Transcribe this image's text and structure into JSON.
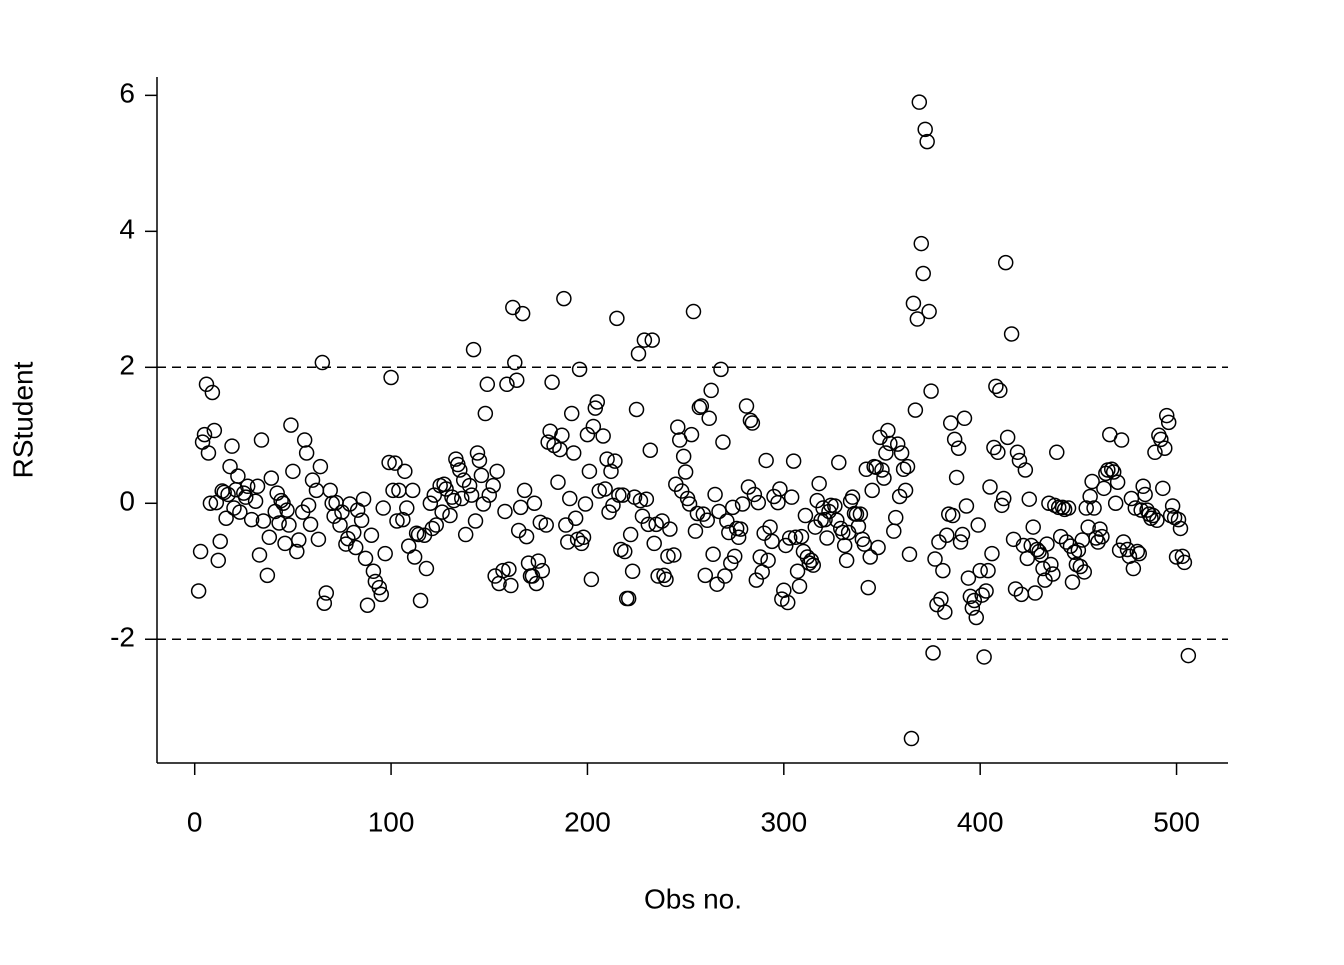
{
  "chart_data": {
    "type": "scatter",
    "x_label": "Obs no.",
    "y_label": "RStudent",
    "xlim": [
      -19.2,
      526.2
    ],
    "ylim": [
      -3.82,
      6.27
    ],
    "xticks": [
      0,
      100,
      200,
      300,
      400,
      500
    ],
    "yticks": [
      -2,
      0,
      2,
      4,
      6
    ],
    "hlines": [
      2,
      -2
    ],
    "color": "#000000",
    "x": [
      2,
      3,
      4,
      5,
      6,
      7,
      8,
      9,
      10,
      11,
      12,
      13,
      14,
      15,
      16,
      17,
      18,
      19,
      20,
      21,
      22,
      23,
      25,
      26,
      27,
      29,
      31,
      32,
      33,
      34,
      35,
      37,
      38,
      39,
      41,
      42,
      43,
      44,
      45,
      46,
      47,
      48,
      49,
      50,
      52,
      53,
      55,
      56,
      57,
      58,
      59,
      60,
      62,
      63,
      64,
      65,
      66,
      67,
      69,
      70,
      71,
      72,
      74,
      75,
      77,
      78,
      79,
      81,
      82,
      83,
      85,
      86,
      87,
      88,
      90,
      91,
      92,
      94,
      95,
      96,
      97,
      99,
      100,
      101,
      102,
      103,
      104,
      106,
      107,
      108,
      109,
      111,
      112,
      113,
      114,
      115,
      117,
      118,
      120,
      121,
      122,
      123,
      125,
      126,
      127,
      128,
      130,
      131,
      132,
      133,
      134,
      135,
      136,
      137,
      138,
      140,
      141,
      142,
      143,
      144,
      145,
      146,
      147,
      148,
      149,
      150,
      152,
      153,
      154,
      155,
      157,
      158,
      159,
      160,
      161,
      162,
      163,
      164,
      165,
      166,
      167,
      168,
      169,
      170,
      171,
      172,
      173,
      174,
      175,
      176,
      177,
      179,
      180,
      181,
      182,
      183,
      185,
      186,
      187,
      188,
      189,
      190,
      191,
      192,
      193,
      194,
      195,
      196,
      197,
      198,
      199,
      200,
      201,
      202,
      203,
      204,
      205,
      206,
      208,
      209,
      210,
      211,
      212,
      213,
      214,
      215,
      216,
      217,
      218,
      219,
      220,
      221,
      222,
      223,
      224,
      225,
      226,
      227,
      228,
      229,
      230,
      231,
      232,
      233,
      234,
      235,
      236,
      238,
      239,
      240,
      241,
      242,
      244,
      245,
      246,
      247,
      248,
      249,
      250,
      251,
      252,
      253,
      254,
      255,
      256,
      257,
      258,
      259,
      260,
      261,
      262,
      263,
      264,
      265,
      266,
      267,
      268,
      269,
      270,
      271,
      272,
      273,
      274,
      275,
      276,
      277,
      278,
      279,
      281,
      282,
      283,
      284,
      285,
      286,
      287,
      288,
      289,
      290,
      291,
      292,
      293,
      294,
      295,
      297,
      298,
      299,
      300,
      301,
      302,
      303,
      304,
      305,
      306,
      307,
      308,
      309,
      310,
      311,
      312,
      313,
      314,
      315,
      316,
      317,
      318,
      319,
      320,
      321,
      322,
      323,
      324,
      326,
      327,
      328,
      329,
      330,
      331,
      332,
      333,
      334,
      335,
      336,
      337,
      338,
      339,
      340,
      341,
      342,
      343,
      344,
      345,
      346,
      347,
      348,
      349,
      350,
      351,
      352,
      353,
      354,
      356,
      357,
      358,
      359,
      360,
      361,
      362,
      363,
      364,
      365,
      366,
      367,
      368,
      369,
      370,
      371,
      372,
      373,
      374,
      375,
      376,
      377,
      378,
      379,
      380,
      381,
      382,
      383,
      384,
      385,
      386,
      387,
      388,
      389,
      390,
      391,
      392,
      393,
      394,
      395,
      396,
      397,
      398,
      399,
      400,
      401,
      402,
      403,
      404,
      405,
      406,
      407,
      408,
      409,
      410,
      411,
      412,
      413,
      414,
      416,
      417,
      418,
      419,
      420,
      421,
      422,
      423,
      424,
      425,
      426,
      427,
      428,
      429,
      430,
      431,
      432,
      433,
      434,
      435,
      436,
      437,
      438,
      439,
      440,
      441,
      442,
      443,
      444,
      445,
      446,
      447,
      448,
      449,
      450,
      451,
      452,
      453,
      454,
      455,
      456,
      457,
      458,
      459,
      460,
      461,
      462,
      463,
      464,
      465,
      466,
      467,
      468,
      469,
      470,
      471,
      472,
      473,
      475,
      476,
      477,
      478,
      479,
      480,
      481,
      482,
      483,
      484,
      485,
      486,
      487,
      488,
      489,
      490,
      491,
      492,
      493,
      494,
      495,
      496,
      497,
      498,
      499,
      500,
      501,
      502,
      503,
      504,
      506
    ],
    "values": [
      -1.29,
      -0.71,
      0.9,
      1.01,
      1.75,
      0.74,
      0.0,
      1.63,
      1.07,
      0.01,
      -0.84,
      -0.56,
      0.18,
      0.16,
      -0.22,
      0.13,
      0.54,
      0.84,
      -0.07,
      0.2,
      0.4,
      -0.13,
      0.15,
      0.09,
      0.25,
      -0.24,
      0.03,
      0.25,
      -0.76,
      0.93,
      -0.26,
      -1.06,
      -0.5,
      0.37,
      -0.12,
      0.15,
      -0.29,
      0.04,
      0.0,
      -0.59,
      -0.1,
      -0.32,
      1.15,
      0.47,
      -0.71,
      -0.54,
      -0.13,
      0.93,
      0.74,
      -0.03,
      -0.31,
      0.34,
      0.19,
      -0.53,
      0.54,
      2.07,
      -1.47,
      -1.32,
      0.19,
      0.0,
      -0.19,
      0.01,
      -0.32,
      -0.13,
      -0.6,
      -0.52,
      -0.01,
      -0.43,
      -0.65,
      -0.1,
      -0.25,
      0.06,
      -0.81,
      -1.5,
      -0.47,
      -1.0,
      -1.15,
      -1.24,
      -1.34,
      -0.07,
      -0.74,
      0.6,
      1.85,
      0.19,
      0.59,
      -0.26,
      0.19,
      -0.24,
      0.47,
      -0.07,
      -0.63,
      0.19,
      -0.79,
      -0.44,
      -0.46,
      -1.43,
      -0.47,
      -0.96,
      0.0,
      -0.37,
      0.12,
      -0.32,
      0.26,
      -0.13,
      0.28,
      0.21,
      -0.18,
      0.09,
      0.04,
      0.65,
      0.57,
      0.49,
      0.07,
      0.34,
      -0.46,
      0.26,
      0.12,
      2.26,
      -0.26,
      0.74,
      0.63,
      0.41,
      -0.01,
      1.32,
      1.75,
      0.12,
      0.26,
      -1.07,
      0.47,
      -1.18,
      -0.99,
      -0.12,
      1.75,
      -0.97,
      -1.21,
      2.88,
      2.07,
      1.81,
      -0.4,
      -0.06,
      2.79,
      0.19,
      -0.49,
      -0.88,
      -1.07,
      -1.07,
      0.0,
      -1.18,
      -0.85,
      -0.28,
      -0.99,
      -0.32,
      0.9,
      1.06,
      1.78,
      0.85,
      0.31,
      0.79,
      1.0,
      3.01,
      -0.32,
      -0.57,
      0.07,
      1.32,
      0.74,
      -0.22,
      -0.53,
      1.97,
      -0.59,
      -0.5,
      -0.01,
      1.01,
      0.47,
      -1.12,
      1.13,
      1.4,
      1.49,
      0.18,
      0.99,
      0.21,
      0.65,
      -0.13,
      0.47,
      -0.03,
      0.62,
      2.72,
      0.12,
      -0.68,
      0.12,
      -0.71,
      -1.4,
      -1.4,
      -0.46,
      -1.0,
      0.09,
      1.38,
      2.2,
      0.04,
      -0.19,
      2.4,
      0.06,
      -0.31,
      0.78,
      2.4,
      -0.59,
      -0.31,
      -1.07,
      -0.26,
      -1.06,
      -1.12,
      -0.78,
      -0.38,
      -0.76,
      0.28,
      1.12,
      0.93,
      0.18,
      0.69,
      0.46,
      0.07,
      -0.01,
      1.01,
      2.82,
      -0.41,
      -0.15,
      1.41,
      1.43,
      -0.16,
      -1.06,
      -0.25,
      1.25,
      1.66,
      -0.75,
      0.13,
      -1.19,
      -0.12,
      1.97,
      0.9,
      -1.07,
      -0.26,
      -0.43,
      -0.88,
      -0.06,
      -0.78,
      -0.37,
      -0.5,
      -0.38,
      -0.01,
      1.43,
      0.24,
      1.22,
      1.18,
      0.13,
      -1.13,
      0.01,
      -0.79,
      -1.01,
      -0.44,
      0.63,
      -0.84,
      -0.35,
      -0.56,
      0.1,
      0.01,
      0.21,
      -1.41,
      -1.28,
      -0.62,
      -1.46,
      -0.51,
      0.09,
      0.62,
      -0.5,
      -1.0,
      -1.22,
      -0.49,
      -0.71,
      -0.18,
      -0.79,
      -0.88,
      -0.84,
      -0.91,
      -0.35,
      0.04,
      0.29,
      -0.25,
      -0.07,
      -0.24,
      -0.51,
      -0.12,
      -0.03,
      -0.04,
      -0.25,
      0.6,
      -0.37,
      -0.43,
      -0.62,
      -0.84,
      -0.43,
      0.03,
      0.09,
      -0.15,
      -0.16,
      -0.34,
      -0.16,
      -0.53,
      -0.6,
      0.5,
      -1.24,
      -0.79,
      0.19,
      0.54,
      0.53,
      -0.65,
      0.97,
      0.49,
      0.37,
      0.74,
      1.07,
      0.88,
      -0.41,
      -0.21,
      0.87,
      0.1,
      0.74,
      0.5,
      0.19,
      0.54,
      -0.75,
      -3.46,
      2.94,
      1.37,
      2.71,
      5.9,
      3.82,
      3.38,
      5.5,
      5.32,
      2.82,
      1.65,
      -2.2,
      -0.82,
      -1.49,
      -0.57,
      -1.41,
      -0.99,
      -1.6,
      -0.47,
      -0.16,
      1.18,
      -0.18,
      0.94,
      0.38,
      0.81,
      -0.57,
      -0.46,
      1.25,
      -0.04,
      -1.1,
      -1.37,
      -1.54,
      -1.43,
      -1.68,
      -0.32,
      -0.99,
      -1.35,
      -2.26,
      -1.29,
      -0.99,
      0.24,
      -0.74,
      0.82,
      1.72,
      0.75,
      1.66,
      -0.03,
      0.07,
      3.54,
      0.97,
      2.49,
      -0.53,
      -1.26,
      0.75,
      0.63,
      -1.34,
      -0.62,
      0.49,
      -0.81,
      0.06,
      -0.62,
      -0.35,
      -1.32,
      -0.68,
      -0.71,
      -0.76,
      -0.96,
      -1.13,
      -0.6,
      0.0,
      -0.9,
      -1.04,
      -0.03,
      0.75,
      -0.06,
      -0.49,
      -0.06,
      -0.09,
      -0.57,
      -0.07,
      -0.63,
      -1.16,
      -0.72,
      -0.9,
      -0.69,
      -0.93,
      -0.54,
      -1.01,
      -0.07,
      -0.35,
      0.1,
      0.32,
      -0.07,
      -0.51,
      -0.57,
      -0.38,
      -0.49,
      0.22,
      0.44,
      0.49,
      1.01,
      0.5,
      0.46,
      0.0,
      0.31,
      -0.69,
      0.93,
      -0.57,
      -0.68,
      -0.78,
      0.07,
      -0.96,
      -0.07,
      -0.71,
      -0.74,
      -0.1,
      0.25,
      0.13,
      -0.1,
      -0.16,
      -0.22,
      -0.18,
      0.75,
      -0.25,
      1.0,
      0.94,
      0.22,
      0.81,
      1.29,
      1.19,
      -0.18,
      -0.04,
      -0.21,
      -0.79,
      -0.24,
      -0.37,
      -0.78,
      -0.87,
      -2.24
    ]
  }
}
